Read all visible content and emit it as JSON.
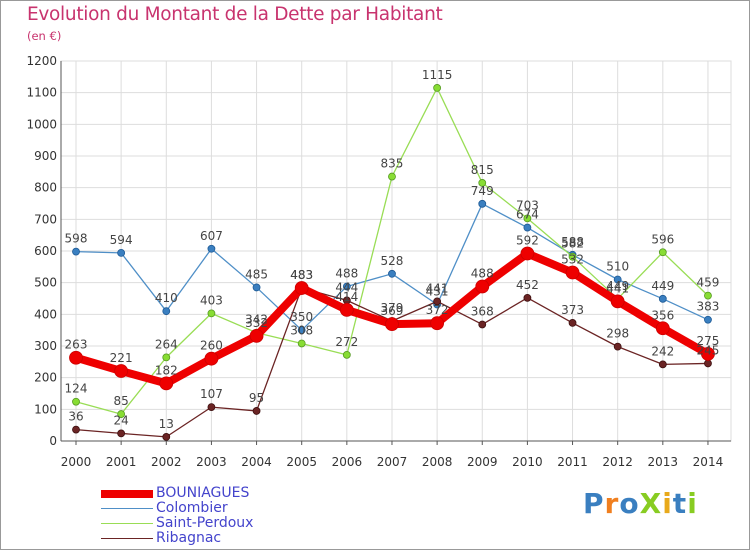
{
  "title": "Evolution du Montant de la Dette par Habitant",
  "unit_label": "(en €)",
  "logo_text": "ProXiti",
  "chart_data": {
    "type": "line",
    "x": [
      "2000",
      "2001",
      "2002",
      "2003",
      "2004",
      "2005",
      "2006",
      "2007",
      "2008",
      "2009",
      "2010",
      "2011",
      "2012",
      "2013",
      "2014"
    ],
    "ylim": [
      0,
      1200
    ],
    "yticks": [
      0,
      100,
      200,
      300,
      400,
      500,
      600,
      700,
      800,
      900,
      1000,
      1100,
      1200
    ],
    "grid": true,
    "legend_position": "bottom-left",
    "series": [
      {
        "name": "BOUNIAGUES",
        "color": "#ee0000",
        "values": [
          263,
          221,
          182,
          260,
          332,
          483,
          414,
          369,
          372,
          488,
          592,
          532,
          441,
          356,
          275
        ]
      },
      {
        "name": "Colombier",
        "color": "#4f8fc7",
        "values": [
          598,
          594,
          410,
          607,
          485,
          350,
          488,
          528,
          431,
          749,
          674,
          588,
          510,
          449,
          383
        ]
      },
      {
        "name": "Saint-Perdoux",
        "color": "#99dd55",
        "values": [
          124,
          85,
          264,
          403,
          342,
          308,
          272,
          835,
          1115,
          815,
          703,
          582,
          449,
          596,
          459
        ]
      },
      {
        "name": "Ribagnac",
        "color": "#6b2424",
        "values": [
          36,
          24,
          13,
          107,
          95,
          483,
          444,
          379,
          441,
          368,
          452,
          373,
          298,
          242,
          245
        ]
      }
    ]
  }
}
